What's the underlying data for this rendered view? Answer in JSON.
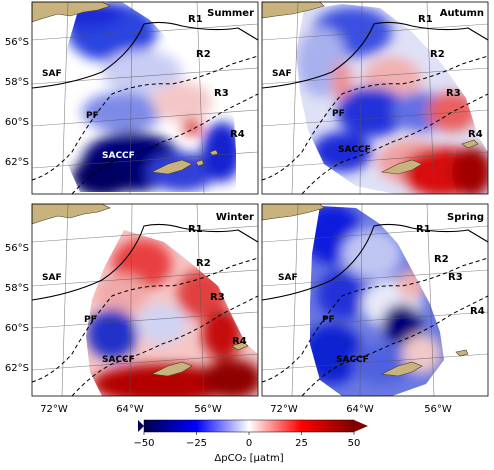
{
  "panels": [
    {
      "season": "Summer",
      "id": "summer",
      "regions": [
        "R1",
        "R2",
        "R3",
        "R4"
      ],
      "fronts": [
        "SAF",
        "PF",
        "SACCF"
      ]
    },
    {
      "season": "Autumn",
      "id": "autumn",
      "regions": [
        "R1",
        "R2",
        "R3",
        "R4"
      ],
      "fronts": [
        "SAF",
        "PF",
        "SACCF"
      ]
    },
    {
      "season": "Winter",
      "id": "winter",
      "regions": [
        "R1",
        "R2",
        "R3",
        "R4"
      ],
      "fronts": [
        "SAF",
        "PF",
        "SACCF"
      ]
    },
    {
      "season": "Spring",
      "id": "spring",
      "regions": [
        "R1",
        "R2",
        "R3",
        "R4"
      ],
      "fronts": [
        "SAF",
        "PF",
        "SACCF"
      ]
    }
  ],
  "lat_labels": [
    "56°S",
    "58°S",
    "60°S",
    "62°S"
  ],
  "lon_labels": [
    "72°W",
    "64°W",
    "56°W"
  ],
  "colorbar": {
    "label": "ΔpCO₂ [µatm]",
    "ticks": [
      "−50",
      "−25",
      "0",
      "25",
      "50"
    ],
    "range": [
      -50,
      50
    ],
    "colormap": "seismic",
    "colors": {
      "low": "#00004c",
      "mid_low": "#0000ff",
      "zero": "#ffffff",
      "mid_high": "#ff0000",
      "high": "#7f0000"
    }
  },
  "colors": {
    "land": "#c8b37e",
    "front_line": "#000000"
  }
}
